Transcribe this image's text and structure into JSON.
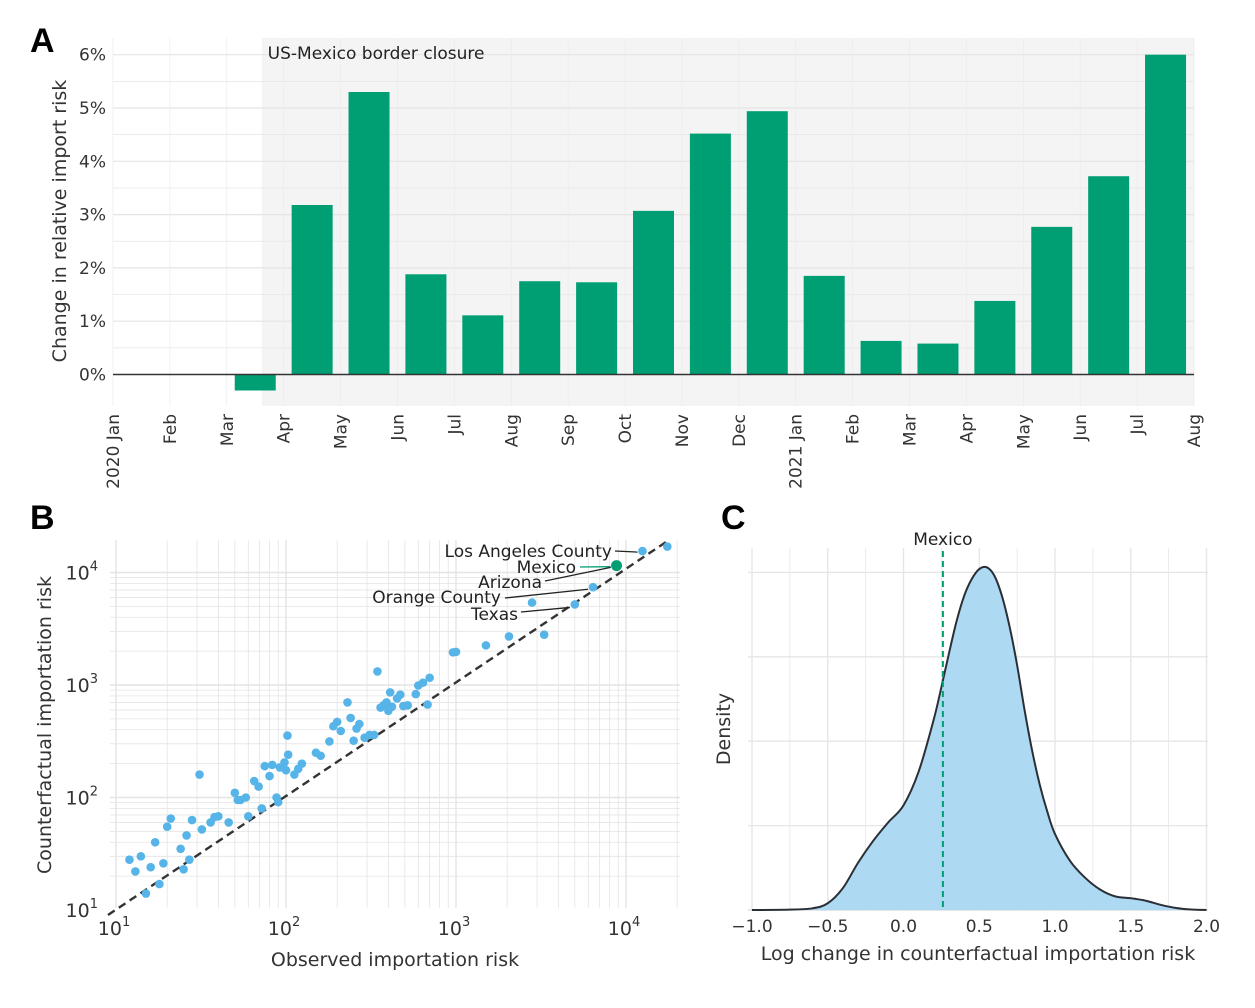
{
  "colors": {
    "bar": "#009e73",
    "mexico": "#009e73",
    "point": "#56b4e9",
    "density_fill": "#a9d7f1",
    "shade": "#f4f4f4",
    "grid": "#e6e6e6",
    "ink": "#333333"
  },
  "chart_data": [
    {
      "panel": "A",
      "type": "bar",
      "ylabel": "Change in relative import risk",
      "xlabel": "",
      "ylim": [
        -0.6,
        6.3
      ],
      "y_ticks": [
        "0%",
        "1%",
        "2%",
        "3%",
        "4%",
        "5%",
        "6%"
      ],
      "x_tick_labels": [
        "2020 Jan",
        "Feb",
        "Mar",
        "Apr",
        "May",
        "Jun",
        "Jul",
        "Aug",
        "Sep",
        "Oct",
        "Nov",
        "Dec",
        "2021 Jan",
        "Feb",
        "Mar",
        "Apr",
        "May",
        "Jun",
        "Jul",
        "Aug"
      ],
      "categories": [
        "2020 Jan",
        "Feb",
        "Mar",
        "Apr",
        "May",
        "Jun",
        "Jul",
        "Aug",
        "Sep",
        "Oct",
        "Nov",
        "Dec",
        "2021 Jan",
        "Feb",
        "Mar",
        "Apr",
        "May",
        "Jun",
        "Jul"
      ],
      "values": [
        0,
        0,
        -0.3,
        3.18,
        5.3,
        1.88,
        1.11,
        1.75,
        1.73,
        3.07,
        4.52,
        4.94,
        1.85,
        0.63,
        0.58,
        1.38,
        2.77,
        3.72,
        6.0
      ],
      "annotation": "US-Mexico border closure",
      "shaded_from_month": 3,
      "grid": true
    },
    {
      "panel": "B",
      "type": "scatter",
      "xlabel": "Observed importation risk",
      "ylabel": "Counterfactual importation risk",
      "x_scale": "log",
      "y_scale": "log",
      "xlim": [
        10,
        18000
      ],
      "ylim": [
        10,
        18000
      ],
      "x_tick_labels": [
        "10",
        "10",
        "10",
        "10"
      ],
      "y_tick_labels": [
        "10",
        "10",
        "10",
        "10"
      ],
      "tick_exponents": [
        "1",
        "2",
        "3",
        "4"
      ],
      "reference_line": "y = x",
      "highlight": {
        "label": "Mexico",
        "x": 8800,
        "y": 11500
      },
      "labels": [
        {
          "text": "Los Angeles County",
          "x": 12500,
          "y": 15500
        },
        {
          "text": "Arizona",
          "x": 8700,
          "y": 11800
        },
        {
          "text": "Orange County",
          "x": 6400,
          "y": 7400
        },
        {
          "text": "Texas",
          "x": 5000,
          "y": 5200
        }
      ],
      "points": [
        [
          12,
          28
        ],
        [
          13,
          22
        ],
        [
          14,
          30
        ],
        [
          15,
          14
        ],
        [
          16,
          24
        ],
        [
          17,
          40
        ],
        [
          18,
          17
        ],
        [
          19,
          26
        ],
        [
          20,
          55
        ],
        [
          21,
          65
        ],
        [
          24,
          35
        ],
        [
          25,
          23
        ],
        [
          26,
          46
        ],
        [
          27,
          28
        ],
        [
          28,
          63
        ],
        [
          31,
          160
        ],
        [
          32,
          52
        ],
        [
          36,
          60
        ],
        [
          38,
          67
        ],
        [
          40,
          68
        ],
        [
          46,
          60
        ],
        [
          50,
          110
        ],
        [
          52,
          95
        ],
        [
          54,
          95
        ],
        [
          58,
          100
        ],
        [
          60,
          68
        ],
        [
          65,
          140
        ],
        [
          69,
          125
        ],
        [
          72,
          80
        ],
        [
          75,
          190
        ],
        [
          80,
          155
        ],
        [
          83,
          195
        ],
        [
          88,
          100
        ],
        [
          90,
          91
        ],
        [
          92,
          185
        ],
        [
          98,
          205
        ],
        [
          100,
          175
        ],
        [
          102,
          355
        ],
        [
          103,
          240
        ],
        [
          112,
          160
        ],
        [
          118,
          180
        ],
        [
          124,
          200
        ],
        [
          150,
          250
        ],
        [
          160,
          235
        ],
        [
          180,
          315
        ],
        [
          190,
          430
        ],
        [
          200,
          470
        ],
        [
          210,
          390
        ],
        [
          230,
          700
        ],
        [
          240,
          510
        ],
        [
          250,
          320
        ],
        [
          260,
          410
        ],
        [
          270,
          450
        ],
        [
          290,
          340
        ],
        [
          310,
          360
        ],
        [
          330,
          360
        ],
        [
          345,
          1320
        ],
        [
          360,
          630
        ],
        [
          375,
          660
        ],
        [
          390,
          700
        ],
        [
          400,
          590
        ],
        [
          410,
          860
        ],
        [
          420,
          640
        ],
        [
          450,
          760
        ],
        [
          470,
          820
        ],
        [
          490,
          650
        ],
        [
          520,
          660
        ],
        [
          580,
          830
        ],
        [
          600,
          990
        ],
        [
          640,
          1050
        ],
        [
          680,
          670
        ],
        [
          700,
          1160
        ],
        [
          960,
          1950
        ],
        [
          1000,
          1970
        ],
        [
          1500,
          2250
        ],
        [
          2050,
          2700
        ],
        [
          2800,
          5400
        ],
        [
          3300,
          2800
        ],
        [
          5000,
          5200
        ],
        [
          6400,
          7400
        ],
        [
          12500,
          15500
        ],
        [
          17500,
          17000
        ]
      ],
      "grid": true
    },
    {
      "panel": "C",
      "type": "area",
      "xlabel": "Log change in counterfactual importation risk",
      "ylabel": "Density",
      "xlim": [
        -1.0,
        2.0
      ],
      "ylim": [
        0,
        2.05
      ],
      "x_tick_labels": [
        "−1.0",
        "−0.5",
        "0.0",
        "0.5",
        "1.0",
        "1.5",
        "2.0"
      ],
      "x_ticks": [
        -1.0,
        -0.5,
        0.0,
        0.5,
        1.0,
        1.5,
        2.0
      ],
      "marker": {
        "label": "Mexico",
        "x": 0.26,
        "style": "dashed"
      },
      "x": [
        -1.0,
        -0.75,
        -0.6,
        -0.5,
        -0.4,
        -0.3,
        -0.2,
        -0.1,
        0.0,
        0.1,
        0.2,
        0.25,
        0.3,
        0.35,
        0.4,
        0.45,
        0.5,
        0.55,
        0.6,
        0.65,
        0.7,
        0.75,
        0.8,
        0.85,
        0.9,
        0.95,
        1.0,
        1.1,
        1.2,
        1.3,
        1.4,
        1.5,
        1.6,
        1.7,
        1.8,
        1.9,
        2.0
      ],
      "y": [
        0.0,
        0.002,
        0.01,
        0.04,
        0.13,
        0.28,
        0.41,
        0.52,
        0.62,
        0.82,
        1.13,
        1.32,
        1.52,
        1.71,
        1.86,
        1.96,
        2.02,
        2.03,
        1.98,
        1.86,
        1.68,
        1.45,
        1.18,
        0.94,
        0.74,
        0.58,
        0.45,
        0.29,
        0.19,
        0.12,
        0.08,
        0.07,
        0.055,
        0.03,
        0.012,
        0.003,
        0.0
      ],
      "grid": true
    }
  ]
}
